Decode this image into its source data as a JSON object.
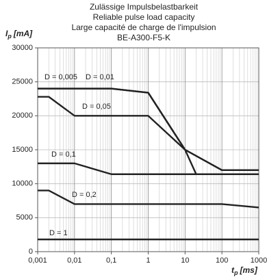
{
  "chart_data": {
    "type": "line",
    "title": [
      "Zulässige Impulsbelastbarkeit",
      "Reliable pulse load capacity",
      "Large capacité de charge de l'impulsion",
      "BE-A300-F5-K"
    ],
    "ylabel": {
      "symbol": "I",
      "subscript": "p",
      "unit": "[mA]"
    },
    "xlabel": {
      "symbol": "t",
      "subscript": "p",
      "unit": "[ms]"
    },
    "xscale": "log",
    "grid": true,
    "xlim": [
      0.001,
      1000
    ],
    "xticks": [
      {
        "value": 0.001,
        "label": "0,001"
      },
      {
        "value": 0.01,
        "label": "0,01"
      },
      {
        "value": 0.1,
        "label": "0,1"
      },
      1,
      10,
      100,
      1000
    ],
    "ylim": [
      0,
      30000
    ],
    "yticks": [
      0,
      5000,
      10000,
      15000,
      20000,
      25000,
      30000
    ],
    "series": [
      {
        "name": "D = 0,005",
        "color": "#222222",
        "x": [
          0.001,
          0.1,
          1,
          10,
          100,
          1000
        ],
        "values": [
          24000,
          24000,
          23400,
          15000,
          12000,
          12000
        ]
      },
      {
        "name": "D = 0,01",
        "color": "#222222",
        "x": [
          0.001,
          0.1,
          1,
          10,
          100,
          1000
        ],
        "values": [
          24000,
          24000,
          23400,
          15000,
          12000,
          12000
        ]
      },
      {
        "name": "D = 0,05",
        "color": "#222222",
        "x": [
          0.001,
          0.002,
          0.01,
          1,
          10,
          20
        ],
        "values": [
          22800,
          22800,
          20000,
          20000,
          15000,
          11400
        ]
      },
      {
        "name": "D = 0,1",
        "color": "#222222",
        "x": [
          0.001,
          0.01,
          0.1,
          1000
        ],
        "values": [
          13000,
          13000,
          11400,
          11400
        ]
      },
      {
        "name": "D = 0,2",
        "color": "#222222",
        "x": [
          0.001,
          0.002,
          0.01,
          100,
          1000
        ],
        "values": [
          9000,
          9000,
          7000,
          7000,
          6500
        ]
      },
      {
        "name": "D = 1",
        "color": "#222222",
        "x": [
          0.001,
          1000
        ],
        "values": [
          1800,
          1800
        ]
      }
    ]
  }
}
